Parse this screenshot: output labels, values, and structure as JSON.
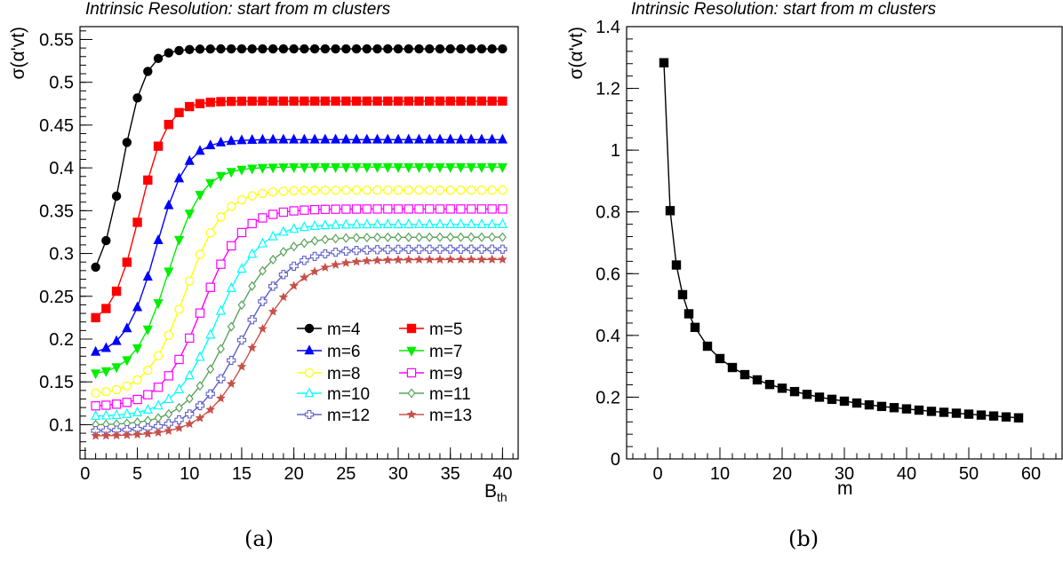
{
  "chart_data": [
    {
      "type": "line",
      "panel": "a",
      "title": "Intrinsic Resolution: start from m clusters",
      "xlabel": "B",
      "xlabel_sub": "th",
      "ylabel": "σ(α'vt)",
      "xlim": [
        -0.5,
        41.5
      ],
      "ylim": [
        0.06,
        0.565
      ],
      "xticks": [
        0,
        5,
        10,
        15,
        20,
        25,
        30,
        35,
        40
      ],
      "yticks": [
        0.1,
        0.15,
        0.2,
        0.25,
        0.3,
        0.35,
        0.4,
        0.45,
        0.5,
        0.55
      ],
      "ytick_labels": [
        "0.1",
        "0.15",
        "0.2",
        "0.25",
        "0.3",
        "0.35",
        "0.4",
        "0.45",
        "0.5",
        "0.55"
      ],
      "grid": false,
      "legend_position": "bottom-right",
      "x": [
        1,
        2,
        3,
        4,
        5,
        6,
        7,
        8,
        9,
        10,
        11,
        12,
        13,
        14,
        15,
        16,
        17,
        18,
        19,
        20,
        21,
        22,
        23,
        24,
        25,
        26,
        27,
        28,
        29,
        30,
        31,
        32,
        33,
        34,
        35,
        36,
        37,
        38,
        39,
        40
      ],
      "series": [
        {
          "name": "m=4",
          "color": "#000000",
          "marker": "circle",
          "params": [
            0.284,
            0.539,
            3.5,
            2.2
          ]
        },
        {
          "name": "m=5",
          "color": "#ff0000",
          "marker": "square",
          "params": [
            0.225,
            0.478,
            5.2,
            2.6
          ]
        },
        {
          "name": "m=6",
          "color": "#0000ff",
          "marker": "triangle-up",
          "params": [
            0.185,
            0.433,
            6.8,
            2.9
          ]
        },
        {
          "name": "m=7",
          "color": "#00ee00",
          "marker": "triangle-down",
          "params": [
            0.16,
            0.401,
            8.0,
            3.2
          ]
        },
        {
          "name": "m=8",
          "color": "#ffff00",
          "marker": "circle-open",
          "params": [
            0.137,
            0.374,
            9.6,
            3.6
          ]
        },
        {
          "name": "m=9",
          "color": "#ff00ff",
          "marker": "square-open",
          "params": [
            0.122,
            0.352,
            11.2,
            3.8
          ]
        },
        {
          "name": "m=10",
          "color": "#00ffff",
          "marker": "triangle-up-open",
          "params": [
            0.11,
            0.334,
            12.6,
            4.0
          ]
        },
        {
          "name": "m=11",
          "color": "#59a359",
          "marker": "diamond-open",
          "params": [
            0.1,
            0.319,
            13.8,
            4.2
          ]
        },
        {
          "name": "m=12",
          "color": "#6060c8",
          "marker": "cross-open",
          "params": [
            0.093,
            0.305,
            15.0,
            4.4
          ]
        },
        {
          "name": "m=13",
          "color": "#c8504a",
          "marker": "star",
          "params": [
            0.087,
            0.293,
            16.0,
            4.6
          ]
        }
      ],
      "caption": "(a)"
    },
    {
      "type": "line",
      "panel": "b",
      "title": "Intrinsic Resolution: start from m clusters",
      "xlabel": "m",
      "ylabel": "σ(α'vt)",
      "xlim": [
        -5,
        65
      ],
      "ylim": [
        0,
        1.4
      ],
      "xticks": [
        0,
        10,
        20,
        30,
        40,
        50,
        60
      ],
      "yticks": [
        0,
        0.2,
        0.4,
        0.6,
        0.8,
        1,
        1.2,
        1.4
      ],
      "ytick_labels": [
        "0",
        "0.2",
        "0.4",
        "0.6",
        "0.8",
        "1",
        "1.2",
        "1.4"
      ],
      "grid": false,
      "color": "#000000",
      "marker": "square",
      "x": [
        1,
        2,
        3,
        4,
        5,
        6,
        8,
        10,
        12,
        14,
        16,
        18,
        20,
        22,
        24,
        26,
        28,
        30,
        32,
        34,
        36,
        38,
        40,
        42,
        44,
        46,
        48,
        50,
        52,
        54,
        56,
        58
      ],
      "y": [
        1.283,
        0.804,
        0.628,
        0.532,
        0.47,
        0.426,
        0.365,
        0.325,
        0.296,
        0.273,
        0.256,
        0.241,
        0.229,
        0.218,
        0.209,
        0.2,
        0.193,
        0.187,
        0.181,
        0.175,
        0.17,
        0.166,
        0.162,
        0.158,
        0.154,
        0.151,
        0.148,
        0.145,
        0.142,
        0.139,
        0.136,
        0.133
      ],
      "caption": "(b)"
    }
  ]
}
